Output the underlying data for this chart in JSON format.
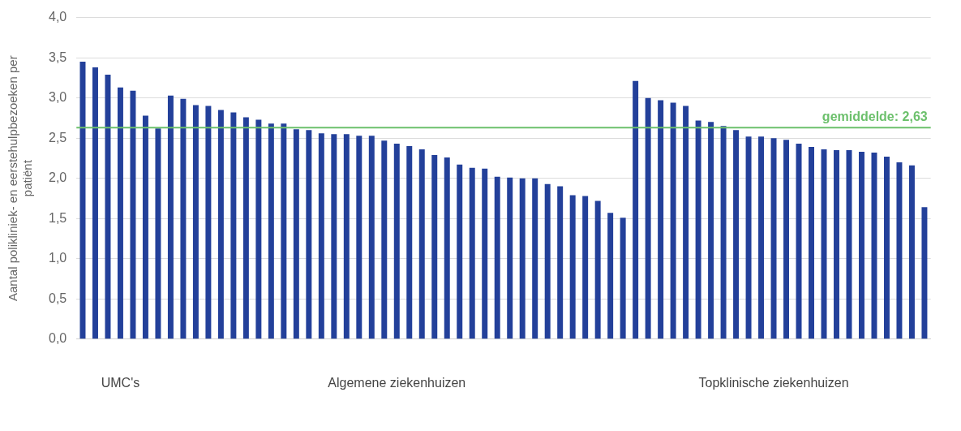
{
  "chart_data": {
    "type": "bar",
    "ylabel": "Aantal polikliniek- en eerstehulpbezoeken per patiënt",
    "categories": [
      null,
      null,
      null,
      "UMC's",
      null,
      null,
      null,
      null,
      null,
      null,
      null,
      null,
      null,
      null,
      null,
      null,
      null,
      null,
      null,
      null,
      null,
      null,
      null,
      null,
      null,
      "Algemene ziekenhuizen",
      null,
      null,
      null,
      null,
      null,
      null,
      null,
      null,
      null,
      null,
      null,
      null,
      null,
      null,
      null,
      null,
      null,
      null,
      null,
      null,
      null,
      null,
      null,
      null,
      null,
      null,
      null,
      null,
      null,
      "Topklinische ziekenhuizen",
      null,
      null,
      null,
      null,
      null,
      null,
      null,
      null,
      null,
      null,
      null,
      null
    ],
    "values": [
      3.45,
      3.38,
      3.29,
      3.13,
      3.09,
      2.78,
      2.62,
      3.03,
      2.99,
      2.91,
      2.9,
      2.85,
      2.82,
      2.76,
      2.73,
      2.68,
      2.68,
      2.61,
      2.6,
      2.56,
      2.55,
      2.55,
      2.53,
      2.53,
      2.47,
      2.43,
      2.4,
      2.36,
      2.29,
      2.26,
      2.17,
      2.13,
      2.12,
      2.02,
      2.01,
      2.0,
      2.0,
      1.93,
      1.9,
      1.79,
      1.78,
      1.72,
      1.57,
      1.51,
      3.21,
      3.0,
      2.97,
      2.94,
      2.9,
      2.72,
      2.7,
      2.65,
      2.6,
      2.52,
      2.52,
      2.5,
      2.48,
      2.43,
      2.39,
      2.36,
      2.35,
      2.35,
      2.33,
      2.32,
      2.27,
      2.2,
      2.16,
      1.64
    ],
    "color": "#23409a",
    "ylim": [
      0,
      4
    ],
    "yticks": [
      {
        "value": 0,
        "label": "0,0"
      },
      {
        "value": 0.5,
        "label": "0,5"
      },
      {
        "value": 1,
        "label": "1,0"
      },
      {
        "value": 1.5,
        "label": "1,5"
      },
      {
        "value": 2,
        "label": "2,0"
      },
      {
        "value": 2.5,
        "label": "2,5"
      },
      {
        "value": 3,
        "label": "3,0"
      },
      {
        "value": 3.5,
        "label": "3,5"
      },
      {
        "value": 4,
        "label": "4,0"
      }
    ],
    "grid": "y",
    "ref_lines": [
      {
        "axis": "y",
        "value": 2.63,
        "label": "gemiddelde: 2,63",
        "color": "#6cc06c"
      }
    ]
  }
}
